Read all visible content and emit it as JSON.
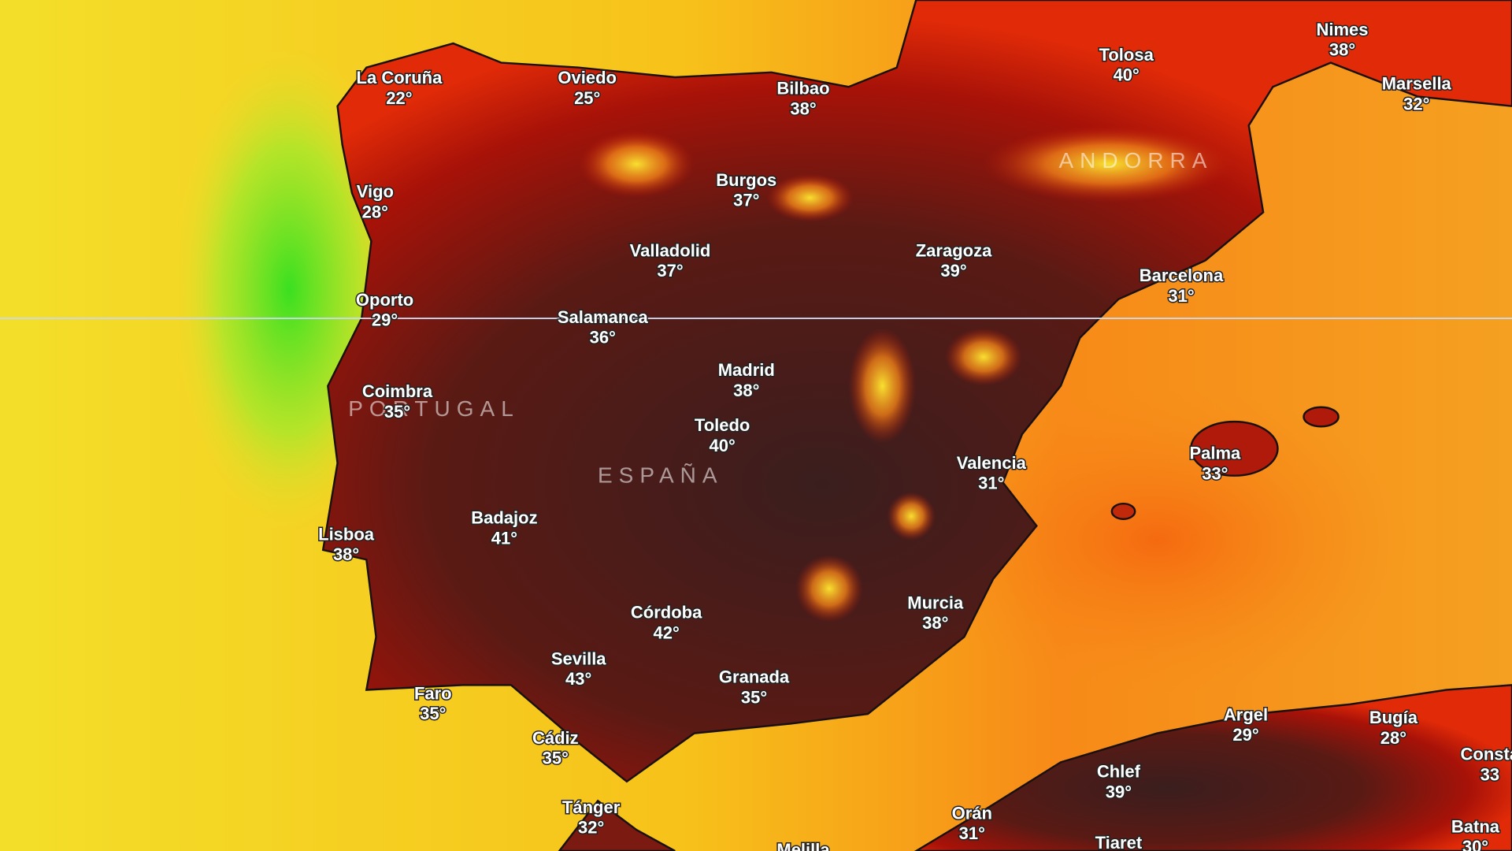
{
  "map": {
    "country_labels": [
      "PORTUGAL",
      "ESPAÑA",
      "ANDORRA"
    ],
    "cities": [
      {
        "name": "La Coruña",
        "temp": "22°"
      },
      {
        "name": "Oviedo",
        "temp": "25°"
      },
      {
        "name": "Bilbao",
        "temp": "38°"
      },
      {
        "name": "Tolosa",
        "temp": "40°"
      },
      {
        "name": "Nimes",
        "temp": "38°"
      },
      {
        "name": "Marsella",
        "temp": "32°"
      },
      {
        "name": "Vigo",
        "temp": "28°"
      },
      {
        "name": "Burgos",
        "temp": "37°"
      },
      {
        "name": "Valladolid",
        "temp": "37°"
      },
      {
        "name": "Zaragoza",
        "temp": "39°"
      },
      {
        "name": "Barcelona",
        "temp": "31°"
      },
      {
        "name": "Oporto",
        "temp": "29°"
      },
      {
        "name": "Salamanca",
        "temp": "36°"
      },
      {
        "name": "Madrid",
        "temp": "38°"
      },
      {
        "name": "Coimbra",
        "temp": "35°"
      },
      {
        "name": "Toledo",
        "temp": "40°"
      },
      {
        "name": "Valencia",
        "temp": "31°"
      },
      {
        "name": "Palma",
        "temp": "33°"
      },
      {
        "name": "Badajoz",
        "temp": "41°"
      },
      {
        "name": "Lisboa",
        "temp": "38°"
      },
      {
        "name": "Murcia",
        "temp": "38°"
      },
      {
        "name": "Córdoba",
        "temp": "42°"
      },
      {
        "name": "Sevilla",
        "temp": "43°"
      },
      {
        "name": "Granada",
        "temp": "35°"
      },
      {
        "name": "Faro",
        "temp": "35°"
      },
      {
        "name": "Argel",
        "temp": "29°"
      },
      {
        "name": "Bugía",
        "temp": "28°"
      },
      {
        "name": "Cádiz",
        "temp": "35°"
      },
      {
        "name": "Chlef",
        "temp": "39°"
      },
      {
        "name": "Consta",
        "temp": "33"
      },
      {
        "name": "Tánger",
        "temp": "32°"
      },
      {
        "name": "Orán",
        "temp": "31°"
      },
      {
        "name": "Batna",
        "temp": "30°"
      },
      {
        "name": "Tiaret"
      },
      {
        "name": "Melilla"
      }
    ]
  }
}
